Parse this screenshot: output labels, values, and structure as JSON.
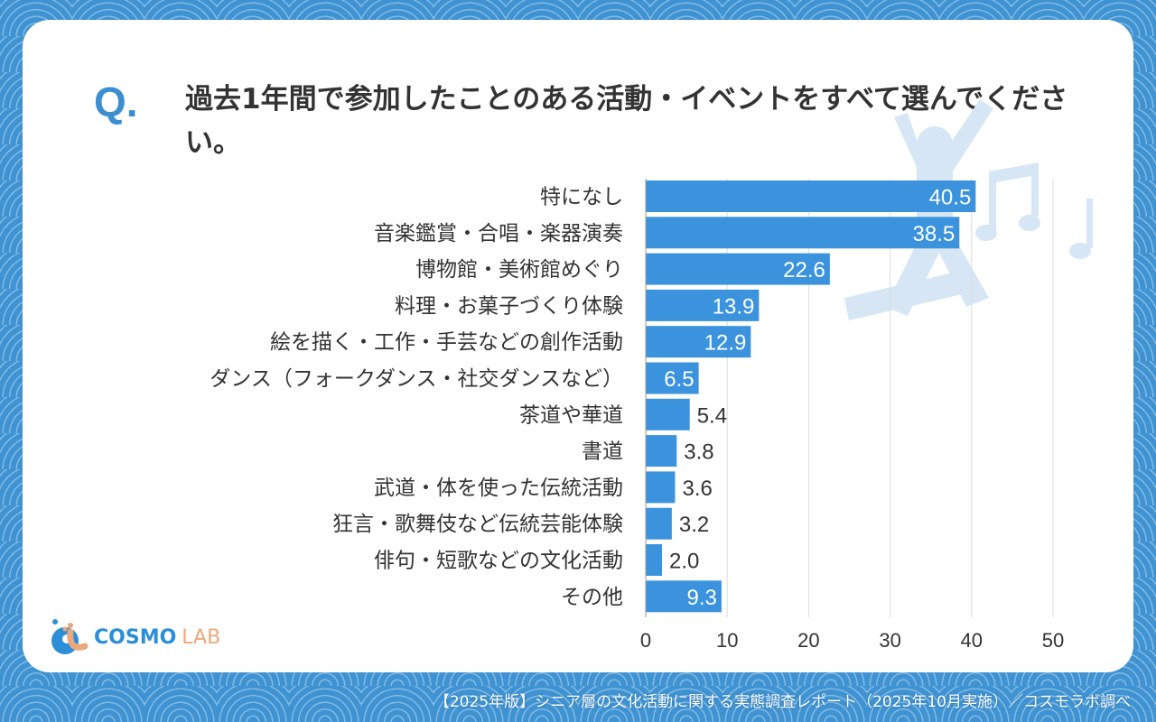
{
  "header": {
    "q_mark": "Q.",
    "question": "過去1年間で参加したことのある活動・イベントをすべて選んでください。"
  },
  "chart_data": {
    "type": "bar",
    "orientation": "horizontal",
    "categories": [
      "特になし",
      "音楽鑑賞・合唱・楽器演奏",
      "博物館・美術館めぐり",
      "料理・お菓子づくり体験",
      "絵を描く・工作・手芸などの創作活動",
      "ダンス（フォークダンス・社交ダンスなど）",
      "茶道や華道",
      "書道",
      "武道・体を使った伝統活動",
      "狂言・歌舞伎など伝統芸能体験",
      "俳句・短歌などの文化活動",
      "その他"
    ],
    "values": [
      40.5,
      38.5,
      22.6,
      13.9,
      12.9,
      6.5,
      5.4,
      3.8,
      3.6,
      3.2,
      2.0,
      9.3
    ],
    "value_labels": [
      "40.5",
      "38.5",
      "22.6",
      "13.9",
      "12.9",
      "6.5",
      "5.4",
      "3.8",
      "3.6",
      "3.2",
      "2.0",
      "9.3"
    ],
    "xlim": [
      0,
      50
    ],
    "xticks": [
      "0",
      "10",
      "20",
      "30",
      "40",
      "50"
    ],
    "grid": true,
    "bar_color": "#3a93dc"
  },
  "logo": {
    "text1": "COSMO",
    "text2": "LAB",
    "color1": "#2a8fd6",
    "color2": "#eaa87c"
  },
  "footer": {
    "text": "【2025年版】シニア層の文化活動に関する実態調査レポート（2025年10月実施）／コスモラボ調べ"
  }
}
